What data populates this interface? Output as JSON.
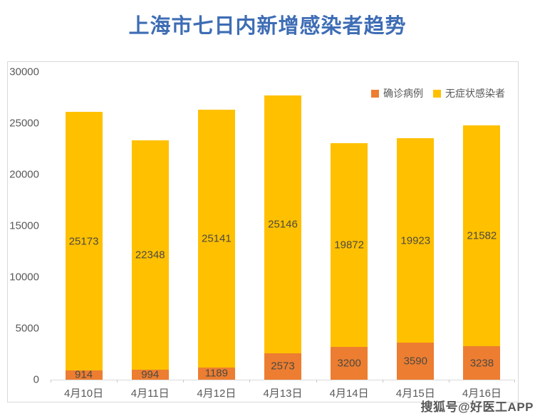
{
  "title": "上海市七日内新增感染者趋势",
  "watermark": "搜狐号@好医工APP",
  "colors": {
    "title_blue": "#3E6DB5",
    "confirmed_orange": "#ED7D31",
    "asymptomatic_yellow": "#FFC000",
    "axis_text": "#595959",
    "data_label": "#4D4A40",
    "border_gray": "#D9D9D9"
  },
  "chart_data": {
    "type": "bar",
    "stacked": true,
    "title": "上海市七日内新增感染者趋势",
    "categories": [
      "4月10日",
      "4月11日",
      "4月12日",
      "4月13日",
      "4月14日",
      "4月15日",
      "4月16日"
    ],
    "series": [
      {
        "name": "确诊病例",
        "color": "#ED7D31",
        "values": [
          914,
          994,
          1189,
          2573,
          3200,
          3590,
          3238
        ]
      },
      {
        "name": "无症状感染者",
        "color": "#FFC000",
        "values": [
          25173,
          22348,
          25141,
          25146,
          19872,
          19923,
          21582
        ]
      }
    ],
    "xlabel": "",
    "ylabel": "",
    "ylim": [
      0,
      30000
    ],
    "y_ticks": [
      0,
      5000,
      10000,
      15000,
      20000,
      25000,
      30000
    ],
    "grid": false,
    "data_labels": true,
    "legend_position": "top-right"
  }
}
